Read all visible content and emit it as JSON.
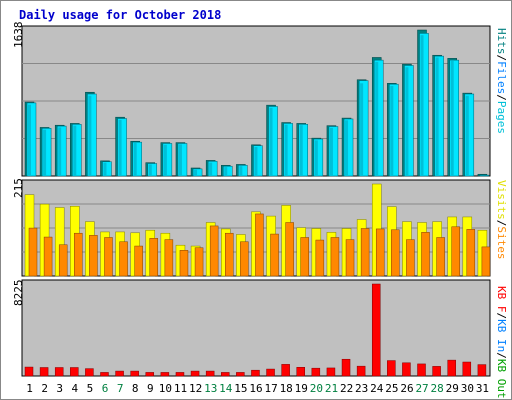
{
  "title": "Daily usage for October 2018",
  "colors": {
    "background": "#c0c0c0",
    "hits": "#00c8e0",
    "hits_shadow": "#008080",
    "files": "#00e6ff",
    "pages": "#00c0d8",
    "visits": "#ffff00",
    "sites": "#ff8800",
    "kbf": "#ff0000",
    "weekend_label": "#008040",
    "weekday_label": "#000000"
  },
  "legend": {
    "top": [
      {
        "label": "Hits",
        "color": "#008080"
      },
      {
        "label": "/",
        "color": "#000000"
      },
      {
        "label": "Files",
        "color": "#0080ff"
      },
      {
        "label": "/",
        "color": "#000000"
      },
      {
        "label": "Pages",
        "color": "#00c0d8"
      }
    ],
    "mid": [
      {
        "label": "Visits",
        "color": "#e0e000"
      },
      {
        "label": "/",
        "color": "#000000"
      },
      {
        "label": "Sites",
        "color": "#ff8800"
      }
    ],
    "bot": [
      {
        "label": "KB F",
        "color": "#ff0000"
      },
      {
        "label": "/",
        "color": "#000000"
      },
      {
        "label": "KB In",
        "color": "#0080ff"
      },
      {
        "label": "/",
        "color": "#000000"
      },
      {
        "label": "KB Out",
        "color": "#00a000"
      }
    ]
  },
  "chart_data": {
    "type": "bar",
    "title": "Daily usage for October 2018",
    "categories": [
      "1",
      "2",
      "3",
      "4",
      "5",
      "6",
      "7",
      "8",
      "9",
      "10",
      "11",
      "12",
      "13",
      "14",
      "15",
      "16",
      "17",
      "18",
      "19",
      "20",
      "21",
      "22",
      "23",
      "24",
      "25",
      "26",
      "27",
      "28",
      "29",
      "30",
      "31"
    ],
    "weekend_days": [
      "6",
      "7",
      "13",
      "14",
      "20",
      "21",
      "27",
      "28"
    ],
    "panels": [
      {
        "name": "top",
        "ymax_label": "1638",
        "ylim": [
          0,
          1638
        ],
        "series": [
          {
            "name": "Hits",
            "values": [
              830,
              545,
              570,
              590,
              940,
              170,
              660,
              390,
              150,
              375,
              375,
              90,
              175,
              120,
              130,
              350,
              795,
              600,
              590,
              425,
              565,
              650,
              1080,
              1330,
              1040,
              1255,
              1638,
              1355,
              1320,
              930,
              20
            ]
          },
          {
            "name": "Files",
            "values": [
              820,
              535,
              560,
              580,
              920,
              160,
              645,
              380,
              140,
              365,
              365,
              80,
              165,
              110,
              120,
              340,
              780,
              590,
              580,
              415,
              555,
              640,
              1070,
              1300,
              1030,
              1240,
              1600,
              1345,
              1300,
              920,
              10
            ]
          },
          {
            "name": "Pages",
            "values": [
              800,
              520,
              545,
              565,
              900,
              150,
              630,
              370,
              130,
              350,
              355,
              70,
              150,
              100,
              110,
              325,
              765,
              575,
              570,
              400,
              540,
              625,
              1040,
              1280,
              1010,
              1220,
              1580,
              1330,
              1290,
              900,
              0
            ]
          }
        ]
      },
      {
        "name": "mid",
        "ymax_label": "215",
        "ylim": [
          0,
          215
        ],
        "series": [
          {
            "name": "Visits",
            "values": [
              190,
              168,
              160,
              163,
              127,
              103,
              103,
              101,
              107,
              100,
              72,
              70,
              125,
              110,
              97,
              150,
              140,
              165,
              113,
              111,
              102,
              111,
              132,
              215,
              162,
              127,
              125,
              127,
              138,
              138,
              107
            ]
          },
          {
            "name": "Sites",
            "values": [
              112,
              91,
              73,
              100,
              95,
              90,
              80,
              70,
              88,
              85,
              60,
              66,
              117,
              100,
              80,
              145,
              98,
              125,
              90,
              84,
              90,
              85,
              111,
              110,
              108,
              85,
              102,
              90,
              115,
              109,
              68
            ]
          }
        ]
      },
      {
        "name": "bot",
        "ymax_label": "8225",
        "ylim": [
          0,
          8225
        ],
        "series": [
          {
            "name": "KB F",
            "values": [
              800,
              760,
              760,
              760,
              660,
              320,
              440,
              440,
              320,
              320,
              320,
              440,
              440,
              320,
              320,
              520,
              620,
              1040,
              780,
              700,
              720,
              1500,
              880,
              8225,
              1380,
              1180,
              1080,
              860,
              1420,
              1250,
              1020
            ]
          }
        ]
      }
    ]
  }
}
